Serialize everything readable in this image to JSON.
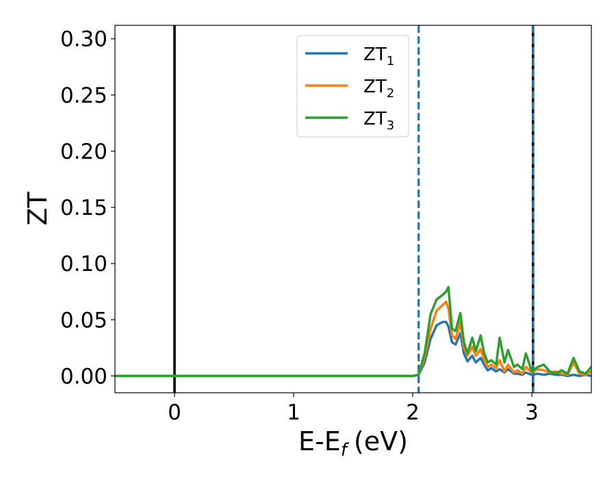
{
  "chart_data": {
    "type": "line",
    "xlabel": "E-E",
    "xlabel_sub": "f",
    "xlabel_unit": "(eV)",
    "ylabel": "ZT",
    "xlim": [
      -0.5,
      3.5
    ],
    "ylim": [
      -0.015,
      0.312
    ],
    "xticks": [
      0,
      1,
      2,
      3
    ],
    "xtick_labels": [
      "0",
      "1",
      "2",
      "3"
    ],
    "yticks": [
      0.0,
      0.05,
      0.1,
      0.15,
      0.2,
      0.25,
      0.3
    ],
    "ytick_labels": [
      "0.00",
      "0.05",
      "0.10",
      "0.15",
      "0.20",
      "0.25",
      "0.30"
    ],
    "grid": false,
    "legend_position": "top-center",
    "vertical_lines": [
      {
        "x": 0.0,
        "style": "solid",
        "color": "#000000"
      },
      {
        "x": 2.05,
        "style": "dashed",
        "color": "#1f77b4"
      },
      {
        "x": 3.01,
        "style": "solid",
        "color": "#000000"
      },
      {
        "x": 3.01,
        "style": "dashed",
        "color": "#1f77b4"
      }
    ],
    "x": [
      -0.5,
      2.0,
      2.05,
      2.1,
      2.15,
      2.2,
      2.25,
      2.28,
      2.3,
      2.33,
      2.36,
      2.4,
      2.43,
      2.46,
      2.5,
      2.53,
      2.57,
      2.6,
      2.63,
      2.66,
      2.7,
      2.73,
      2.77,
      2.8,
      2.85,
      2.88,
      2.92,
      2.95,
      3.0,
      3.05,
      3.1,
      3.15,
      3.2,
      3.25,
      3.3,
      3.35,
      3.4,
      3.45,
      3.5
    ],
    "series": [
      {
        "name": "ZT",
        "subscript": "1",
        "color": "#1f77b4",
        "values": [
          0,
          0,
          0.001,
          0.012,
          0.033,
          0.045,
          0.048,
          0.048,
          0.044,
          0.03,
          0.028,
          0.038,
          0.02,
          0.013,
          0.018,
          0.012,
          0.016,
          0.01,
          0.005,
          0.007,
          0.004,
          0.006,
          0.003,
          0.006,
          0.002,
          0.002,
          0.001,
          0.003,
          0.001,
          0.002,
          0.001,
          0.002,
          0.001,
          0.001,
          0,
          0.001,
          0,
          0.001,
          0
        ]
      },
      {
        "name": "ZT",
        "subscript": "2",
        "color": "#ff7f0e",
        "values": [
          0,
          0,
          0.001,
          0.016,
          0.042,
          0.058,
          0.063,
          0.066,
          0.06,
          0.036,
          0.033,
          0.048,
          0.025,
          0.018,
          0.026,
          0.018,
          0.024,
          0.014,
          0.008,
          0.01,
          0.007,
          0.014,
          0.004,
          0.01,
          0.003,
          0.005,
          0.002,
          0.008,
          0.003,
          0.006,
          0.005,
          0.003,
          0.004,
          0.002,
          0.001,
          0.012,
          0.002,
          0.001,
          0.004
        ]
      },
      {
        "name": "ZT",
        "subscript": "3",
        "color": "#2ca02c",
        "values": [
          0,
          0,
          0.001,
          0.02,
          0.055,
          0.068,
          0.072,
          0.075,
          0.079,
          0.042,
          0.04,
          0.056,
          0.03,
          0.02,
          0.034,
          0.022,
          0.036,
          0.02,
          0.012,
          0.014,
          0.01,
          0.034,
          0.012,
          0.023,
          0.008,
          0.01,
          0.006,
          0.02,
          0.004,
          0.008,
          0.01,
          0.004,
          0.002,
          0.005,
          0.002,
          0.016,
          0.004,
          0.002,
          0.008
        ]
      }
    ]
  }
}
